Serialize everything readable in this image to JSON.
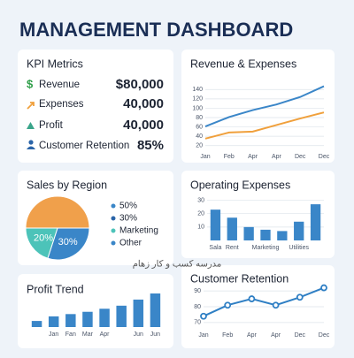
{
  "title": "MANAGEMENT DASHBOARD",
  "watermark": "مدرسه کسب و کار زهام",
  "kpi": {
    "title": "KPI Metrics",
    "items": [
      {
        "icon": "$",
        "label": "Revenue",
        "value": "$80,000"
      },
      {
        "label": "Expenses",
        "value": "40,000"
      },
      {
        "label": "Profit",
        "value": "40,000"
      },
      {
        "label": "Customer Retention",
        "value": "85%"
      }
    ]
  },
  "chart_data": [
    {
      "type": "line",
      "title": "Revenue & Expenses",
      "categories": [
        "Jan",
        "Feb",
        "Apr",
        "Apr",
        "Dec",
        "Dec"
      ],
      "series": [
        {
          "color": "#3a86c8",
          "values": [
            61,
            81,
            96,
            108,
            124,
            147
          ]
        },
        {
          "color": "#f0a03c",
          "values": [
            35,
            48,
            50,
            64,
            78,
            91
          ]
        }
      ],
      "ylim": [
        10,
        150
      ],
      "yticks": [
        20,
        40,
        60,
        80,
        100,
        120,
        140
      ],
      "grid": true
    },
    {
      "type": "pie",
      "title": "Sales by Region",
      "values": [
        50,
        30,
        20
      ],
      "value_labels": [
        null,
        "30%",
        "20%"
      ],
      "colors": [
        "#f0a04b",
        "#3a86c8",
        "#4cc3b9"
      ],
      "legend": [
        {
          "name": "50%",
          "color": "#3a86c8"
        },
        {
          "name": "30%",
          "color": "#2a64a8"
        },
        {
          "name": "Marketing",
          "color": "#4cc3b9"
        },
        {
          "name": "Other",
          "color": "#3a86c8"
        }
      ]
    },
    {
      "type": "bar",
      "title": "Operating Expenses",
      "categories": [
        "Sala",
        "Rent",
        null,
        "Marketing",
        null,
        "Utilities",
        null
      ],
      "values": [
        23,
        17,
        10,
        8,
        7,
        14,
        27
      ],
      "color": "#3a86c8",
      "ylim": [
        0,
        33
      ],
      "yticks": [
        10,
        20,
        30
      ],
      "grid": true
    },
    {
      "type": "bar",
      "title": "Profit Trend",
      "categories": [
        null,
        "Jan",
        "Fan",
        "Mar",
        "Apr",
        null,
        "Jun",
        "Jun"
      ],
      "values": [
        8,
        14,
        17,
        20,
        24,
        28,
        36,
        44
      ],
      "color": "#3a86c8"
    },
    {
      "type": "line",
      "title": "Customer Retention",
      "categories": [
        "Jan",
        "Feb",
        "Apr",
        "Apr",
        "Dec",
        "Dec"
      ],
      "series": [
        {
          "color": "#2f7fc4",
          "values": [
            74,
            81,
            85,
            81,
            86,
            92
          ]
        }
      ],
      "ylim": [
        66,
        94
      ],
      "yticks": [
        70,
        80,
        90
      ],
      "grid": true,
      "markers": true
    }
  ]
}
